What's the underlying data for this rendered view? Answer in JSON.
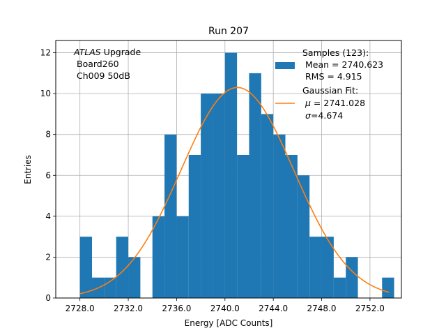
{
  "chart_data": {
    "type": "bar",
    "title": "Run 207",
    "xlabel": "Energy [ADC Counts]",
    "ylabel": "Entries",
    "xlim": [
      2726.0,
      2754.6
    ],
    "ylim": [
      0,
      12.6
    ],
    "xticks": [
      2728.0,
      2732.0,
      2736.0,
      2740.0,
      2744.0,
      2748.0,
      2752.0
    ],
    "xtick_labels": [
      "2728.0",
      "2732.0",
      "2736.0",
      "2740.0",
      "2744.0",
      "2748.0",
      "2752.0"
    ],
    "yticks": [
      0,
      2,
      4,
      6,
      8,
      10,
      12
    ],
    "ytick_labels": [
      "0",
      "2",
      "4",
      "6",
      "8",
      "10",
      "12"
    ],
    "grid": true,
    "bin_width": 1,
    "bins": [
      {
        "x": 2728,
        "count": 3
      },
      {
        "x": 2729,
        "count": 1
      },
      {
        "x": 2730,
        "count": 1
      },
      {
        "x": 2731,
        "count": 3
      },
      {
        "x": 2732,
        "count": 2
      },
      {
        "x": 2733,
        "count": 0
      },
      {
        "x": 2734,
        "count": 4
      },
      {
        "x": 2735,
        "count": 8
      },
      {
        "x": 2736,
        "count": 4
      },
      {
        "x": 2737,
        "count": 7
      },
      {
        "x": 2738,
        "count": 10
      },
      {
        "x": 2739,
        "count": 10
      },
      {
        "x": 2740,
        "count": 12
      },
      {
        "x": 2741,
        "count": 7
      },
      {
        "x": 2742,
        "count": 11
      },
      {
        "x": 2743,
        "count": 9
      },
      {
        "x": 2744,
        "count": 8
      },
      {
        "x": 2745,
        "count": 7
      },
      {
        "x": 2746,
        "count": 6
      },
      {
        "x": 2747,
        "count": 3
      },
      {
        "x": 2748,
        "count": 3
      },
      {
        "x": 2749,
        "count": 1
      },
      {
        "x": 2750,
        "count": 2
      },
      {
        "x": 2751,
        "count": 0
      },
      {
        "x": 2752,
        "count": 0
      },
      {
        "x": 2753,
        "count": 1
      }
    ],
    "fit": {
      "type": "gaussian",
      "amplitude": 10.3,
      "mu": 2741.028,
      "sigma": 4.674,
      "x_range": [
        2728.0,
        2753.6
      ]
    },
    "annotation": {
      "line1_italic": "ATLAS",
      "line1_rest": " Upgrade",
      "line2": "Board260",
      "line3": "Ch009 50dB"
    },
    "legend": {
      "placement": "upper right",
      "hist_title": "Samples (123):",
      "hist_mean": "Mean = 2740.623",
      "hist_rms": "RMS = 4.915",
      "fit_title": "Gaussian Fit:",
      "fit_mu_symbol": "μ",
      "fit_mu_value": " = 2741.028",
      "fit_sigma_symbol": "σ",
      "fit_sigma_value": "=4.674"
    },
    "colors": {
      "bar": "#1f77b4",
      "fit": "#ff7f0e",
      "grid": "#b0b0b0",
      "axes": "#000000"
    }
  }
}
